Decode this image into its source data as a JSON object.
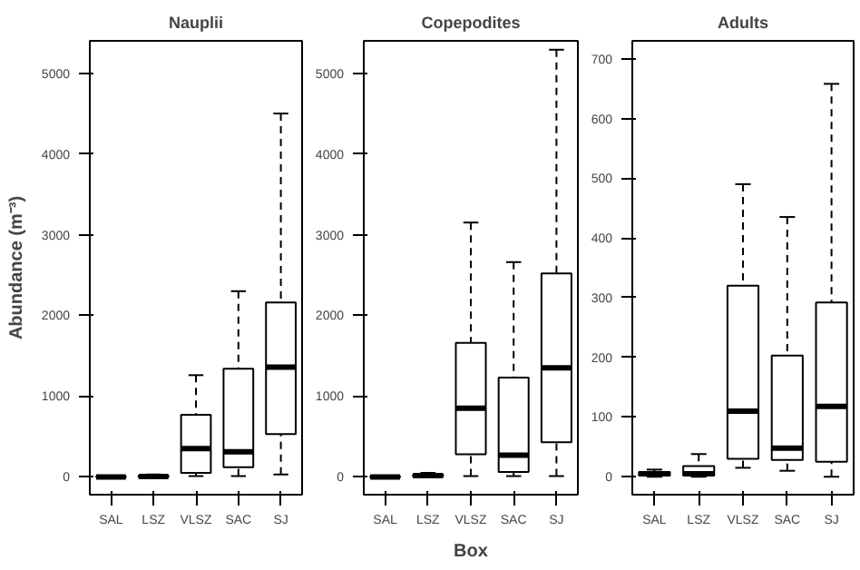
{
  "chart_data": [
    {
      "type": "box",
      "title": "Nauplii",
      "ylabel": "Abundance (m⁻³)",
      "categories": [
        "SAL",
        "LSZ",
        "VLSZ",
        "SAC",
        "SJ"
      ],
      "ylim": [
        -220,
        5400
      ],
      "yticks": [
        0,
        1000,
        2000,
        3000,
        4000,
        5000
      ],
      "boxes": [
        {
          "low": 0,
          "q1": 0,
          "median": 0,
          "q3": 5,
          "high": 10
        },
        {
          "low": 0,
          "q1": 0,
          "median": 5,
          "q3": 15,
          "high": 30
        },
        {
          "low": 10,
          "q1": 50,
          "median": 350,
          "q3": 770,
          "high": 1260
        },
        {
          "low": 10,
          "q1": 120,
          "median": 310,
          "q3": 1340,
          "high": 2300
        },
        {
          "low": 30,
          "q1": 530,
          "median": 1360,
          "q3": 2160,
          "high": 4500
        }
      ]
    },
    {
      "type": "box",
      "title": "Copepodites",
      "xlabel": "Box",
      "categories": [
        "SAL",
        "LSZ",
        "VLSZ",
        "SAC",
        "SJ"
      ],
      "ylim": [
        -220,
        5400
      ],
      "yticks": [
        0,
        1000,
        2000,
        3000,
        4000,
        5000
      ],
      "boxes": [
        {
          "low": 0,
          "q1": 0,
          "median": 0,
          "q3": 5,
          "high": 10
        },
        {
          "low": 0,
          "q1": 5,
          "median": 15,
          "q3": 30,
          "high": 50
        },
        {
          "low": 10,
          "q1": 280,
          "median": 850,
          "q3": 1660,
          "high": 3150
        },
        {
          "low": 10,
          "q1": 60,
          "median": 270,
          "q3": 1230,
          "high": 2660
        },
        {
          "low": 10,
          "q1": 430,
          "median": 1350,
          "q3": 2520,
          "high": 5290
        }
      ]
    },
    {
      "type": "box",
      "title": "Adults",
      "categories": [
        "SAL",
        "LSZ",
        "VLSZ",
        "SAC",
        "SJ"
      ],
      "ylim": [
        -30,
        730
      ],
      "yticks": [
        0,
        100,
        200,
        300,
        400,
        500,
        600,
        700
      ],
      "boxes": [
        {
          "low": 0,
          "q1": 2,
          "median": 5,
          "q3": 8,
          "high": 12
        },
        {
          "low": 0,
          "q1": 2,
          "median": 5,
          "q3": 18,
          "high": 38
        },
        {
          "low": 15,
          "q1": 30,
          "median": 110,
          "q3": 320,
          "high": 490
        },
        {
          "low": 10,
          "q1": 28,
          "median": 48,
          "q3": 203,
          "high": 435
        },
        {
          "low": 0,
          "q1": 25,
          "median": 118,
          "q3": 292,
          "high": 658
        }
      ]
    }
  ]
}
